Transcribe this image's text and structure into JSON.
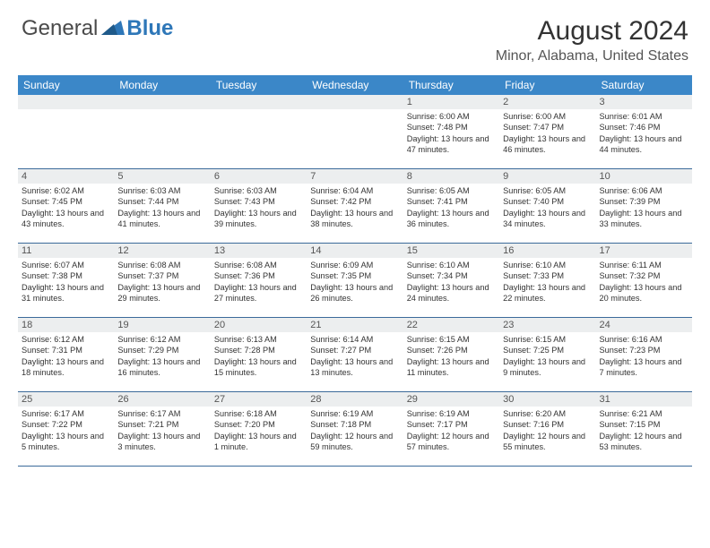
{
  "logo": {
    "part1": "General",
    "part2": "Blue"
  },
  "title": "August 2024",
  "location": "Minor, Alabama, United States",
  "colors": {
    "header_bg": "#3b87c8",
    "header_text": "#ffffff",
    "daynum_bg": "#eceeef",
    "border": "#3b6a9a",
    "logo_gray": "#6b6b6b",
    "logo_blue": "#2e77b8"
  },
  "day_headers": [
    "Sunday",
    "Monday",
    "Tuesday",
    "Wednesday",
    "Thursday",
    "Friday",
    "Saturday"
  ],
  "weeks": [
    [
      {
        "day": "",
        "sunrise": "",
        "sunset": "",
        "daylight": ""
      },
      {
        "day": "",
        "sunrise": "",
        "sunset": "",
        "daylight": ""
      },
      {
        "day": "",
        "sunrise": "",
        "sunset": "",
        "daylight": ""
      },
      {
        "day": "",
        "sunrise": "",
        "sunset": "",
        "daylight": ""
      },
      {
        "day": "1",
        "sunrise": "Sunrise: 6:00 AM",
        "sunset": "Sunset: 7:48 PM",
        "daylight": "Daylight: 13 hours and 47 minutes."
      },
      {
        "day": "2",
        "sunrise": "Sunrise: 6:00 AM",
        "sunset": "Sunset: 7:47 PM",
        "daylight": "Daylight: 13 hours and 46 minutes."
      },
      {
        "day": "3",
        "sunrise": "Sunrise: 6:01 AM",
        "sunset": "Sunset: 7:46 PM",
        "daylight": "Daylight: 13 hours and 44 minutes."
      }
    ],
    [
      {
        "day": "4",
        "sunrise": "Sunrise: 6:02 AM",
        "sunset": "Sunset: 7:45 PM",
        "daylight": "Daylight: 13 hours and 43 minutes."
      },
      {
        "day": "5",
        "sunrise": "Sunrise: 6:03 AM",
        "sunset": "Sunset: 7:44 PM",
        "daylight": "Daylight: 13 hours and 41 minutes."
      },
      {
        "day": "6",
        "sunrise": "Sunrise: 6:03 AM",
        "sunset": "Sunset: 7:43 PM",
        "daylight": "Daylight: 13 hours and 39 minutes."
      },
      {
        "day": "7",
        "sunrise": "Sunrise: 6:04 AM",
        "sunset": "Sunset: 7:42 PM",
        "daylight": "Daylight: 13 hours and 38 minutes."
      },
      {
        "day": "8",
        "sunrise": "Sunrise: 6:05 AM",
        "sunset": "Sunset: 7:41 PM",
        "daylight": "Daylight: 13 hours and 36 minutes."
      },
      {
        "day": "9",
        "sunrise": "Sunrise: 6:05 AM",
        "sunset": "Sunset: 7:40 PM",
        "daylight": "Daylight: 13 hours and 34 minutes."
      },
      {
        "day": "10",
        "sunrise": "Sunrise: 6:06 AM",
        "sunset": "Sunset: 7:39 PM",
        "daylight": "Daylight: 13 hours and 33 minutes."
      }
    ],
    [
      {
        "day": "11",
        "sunrise": "Sunrise: 6:07 AM",
        "sunset": "Sunset: 7:38 PM",
        "daylight": "Daylight: 13 hours and 31 minutes."
      },
      {
        "day": "12",
        "sunrise": "Sunrise: 6:08 AM",
        "sunset": "Sunset: 7:37 PM",
        "daylight": "Daylight: 13 hours and 29 minutes."
      },
      {
        "day": "13",
        "sunrise": "Sunrise: 6:08 AM",
        "sunset": "Sunset: 7:36 PM",
        "daylight": "Daylight: 13 hours and 27 minutes."
      },
      {
        "day": "14",
        "sunrise": "Sunrise: 6:09 AM",
        "sunset": "Sunset: 7:35 PM",
        "daylight": "Daylight: 13 hours and 26 minutes."
      },
      {
        "day": "15",
        "sunrise": "Sunrise: 6:10 AM",
        "sunset": "Sunset: 7:34 PM",
        "daylight": "Daylight: 13 hours and 24 minutes."
      },
      {
        "day": "16",
        "sunrise": "Sunrise: 6:10 AM",
        "sunset": "Sunset: 7:33 PM",
        "daylight": "Daylight: 13 hours and 22 minutes."
      },
      {
        "day": "17",
        "sunrise": "Sunrise: 6:11 AM",
        "sunset": "Sunset: 7:32 PM",
        "daylight": "Daylight: 13 hours and 20 minutes."
      }
    ],
    [
      {
        "day": "18",
        "sunrise": "Sunrise: 6:12 AM",
        "sunset": "Sunset: 7:31 PM",
        "daylight": "Daylight: 13 hours and 18 minutes."
      },
      {
        "day": "19",
        "sunrise": "Sunrise: 6:12 AM",
        "sunset": "Sunset: 7:29 PM",
        "daylight": "Daylight: 13 hours and 16 minutes."
      },
      {
        "day": "20",
        "sunrise": "Sunrise: 6:13 AM",
        "sunset": "Sunset: 7:28 PM",
        "daylight": "Daylight: 13 hours and 15 minutes."
      },
      {
        "day": "21",
        "sunrise": "Sunrise: 6:14 AM",
        "sunset": "Sunset: 7:27 PM",
        "daylight": "Daylight: 13 hours and 13 minutes."
      },
      {
        "day": "22",
        "sunrise": "Sunrise: 6:15 AM",
        "sunset": "Sunset: 7:26 PM",
        "daylight": "Daylight: 13 hours and 11 minutes."
      },
      {
        "day": "23",
        "sunrise": "Sunrise: 6:15 AM",
        "sunset": "Sunset: 7:25 PM",
        "daylight": "Daylight: 13 hours and 9 minutes."
      },
      {
        "day": "24",
        "sunrise": "Sunrise: 6:16 AM",
        "sunset": "Sunset: 7:23 PM",
        "daylight": "Daylight: 13 hours and 7 minutes."
      }
    ],
    [
      {
        "day": "25",
        "sunrise": "Sunrise: 6:17 AM",
        "sunset": "Sunset: 7:22 PM",
        "daylight": "Daylight: 13 hours and 5 minutes."
      },
      {
        "day": "26",
        "sunrise": "Sunrise: 6:17 AM",
        "sunset": "Sunset: 7:21 PM",
        "daylight": "Daylight: 13 hours and 3 minutes."
      },
      {
        "day": "27",
        "sunrise": "Sunrise: 6:18 AM",
        "sunset": "Sunset: 7:20 PM",
        "daylight": "Daylight: 13 hours and 1 minute."
      },
      {
        "day": "28",
        "sunrise": "Sunrise: 6:19 AM",
        "sunset": "Sunset: 7:18 PM",
        "daylight": "Daylight: 12 hours and 59 minutes."
      },
      {
        "day": "29",
        "sunrise": "Sunrise: 6:19 AM",
        "sunset": "Sunset: 7:17 PM",
        "daylight": "Daylight: 12 hours and 57 minutes."
      },
      {
        "day": "30",
        "sunrise": "Sunrise: 6:20 AM",
        "sunset": "Sunset: 7:16 PM",
        "daylight": "Daylight: 12 hours and 55 minutes."
      },
      {
        "day": "31",
        "sunrise": "Sunrise: 6:21 AM",
        "sunset": "Sunset: 7:15 PM",
        "daylight": "Daylight: 12 hours and 53 minutes."
      }
    ]
  ]
}
